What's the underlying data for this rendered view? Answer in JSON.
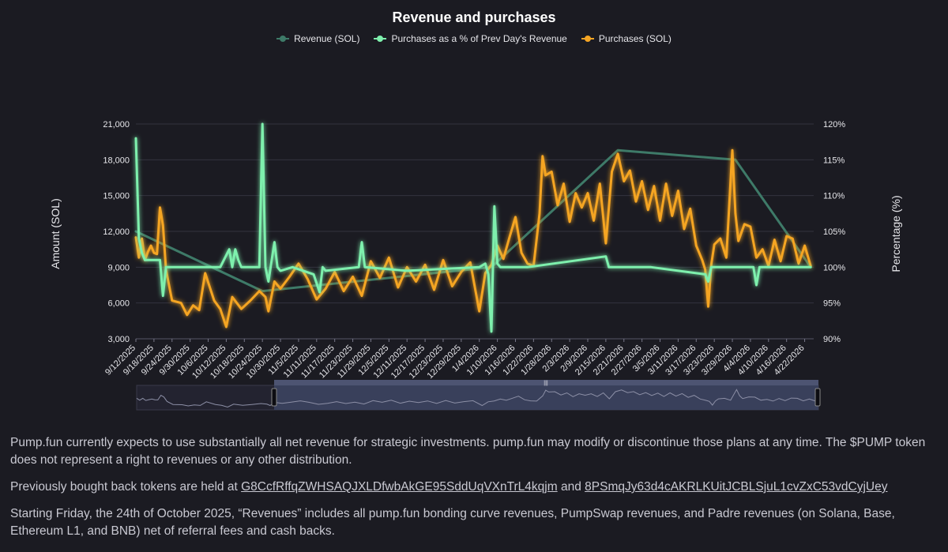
{
  "chart_data": {
    "type": "line",
    "title": "Revenue and purchases",
    "ylabel": "Amount (SOL)",
    "y2label": "Percentage (%)",
    "ylim": [
      3000,
      21000
    ],
    "y2lim": [
      90,
      120
    ],
    "yticks": [
      "21,000",
      "18,000",
      "15,000",
      "12,000",
      "9,000",
      "6,000",
      "3,000"
    ],
    "y2ticks": [
      "120%",
      "115%",
      "110%",
      "105%",
      "100%",
      "95%",
      "90%"
    ],
    "xticks": [
      "9/12/2025",
      "9/18/2025",
      "9/24/2025",
      "9/30/2025",
      "10/6/2025",
      "10/12/2025",
      "10/18/2025",
      "10/24/2025",
      "10/30/2025",
      "11/5/2025",
      "11/11/2025",
      "11/17/2025",
      "11/23/2025",
      "11/29/2025",
      "12/5/2025",
      "12/11/2025",
      "12/17/2025",
      "12/23/2025",
      "12/29/2025",
      "1/4/2026",
      "1/10/2026",
      "1/16/2026",
      "1/22/2026",
      "1/28/2026",
      "2/3/2026",
      "2/9/2026",
      "2/15/2026",
      "2/21/2026",
      "2/27/2026",
      "3/5/2026",
      "3/11/2026",
      "3/17/2026",
      "3/23/2026",
      "3/29/2026",
      "4/4/2026",
      "4/10/2026",
      "4/16/2026",
      "4/22/2026"
    ],
    "grid": true,
    "legend_position": "top-center",
    "series": [
      {
        "name": "Revenue (SOL)",
        "color": "#3e7a68",
        "axis": "left",
        "x": [
          "9/12/2025",
          "10/24/2025",
          "1/8/2026",
          "2/19/2026",
          "3/30/2026",
          "4/24/2026"
        ],
        "y": [
          12000,
          7000,
          9000,
          18800,
          18000,
          9000
        ]
      },
      {
        "name": "Purchases as a % of Prev Day's Revenue",
        "color": "#7ef0ad",
        "axis": "right",
        "x": [
          "9/12/2025",
          "9/13/2025",
          "9/14/2025",
          "9/15/2025",
          "9/20/2025",
          "9/21/2025",
          "9/22/2025",
          "9/30/2025",
          "10/10/2025",
          "10/13/2025",
          "10/14/2025",
          "10/15/2025",
          "10/16/2025",
          "10/17/2025",
          "10/18/2025",
          "10/23/2025",
          "10/24/2025",
          "10/25/2025",
          "10/26/2025",
          "10/28/2025",
          "10/29/2025",
          "10/30/2025",
          "11/3/2025",
          "11/10/2025",
          "11/12/2025",
          "11/13/2025",
          "11/14/2025",
          "11/25/2025",
          "11/26/2025",
          "11/27/2025",
          "12/11/2025",
          "1/4/2026",
          "1/6/2026",
          "1/7/2026",
          "1/8/2026",
          "1/9/2026",
          "1/10/2026",
          "1/11/2026",
          "1/12/2026",
          "1/20/2026",
          "2/15/2026",
          "2/16/2026",
          "2/17/2026",
          "3/2/2026",
          "3/20/2026",
          "3/21/2026",
          "3/22/2026",
          "4/1/2026",
          "4/5/2026",
          "4/6/2026",
          "4/7/2026",
          "4/8/2026",
          "4/24/2026"
        ],
        "y": [
          118,
          104,
          102,
          101,
          101,
          96,
          100,
          100,
          100,
          102.5,
          100,
          102.5,
          101,
          100,
          100,
          100,
          120,
          100,
          98,
          103.5,
          100,
          99.5,
          100,
          99,
          96.5,
          100,
          99.5,
          100,
          103.5,
          100,
          99.5,
          100,
          100.5,
          99,
          91,
          108.5,
          100.5,
          100,
          100,
          100,
          101.5,
          100,
          100,
          100,
          99,
          98,
          100,
          100,
          100,
          97.5,
          100,
          100,
          100
        ]
      },
      {
        "name": "Purchases (SOL)",
        "color": "#f5a524",
        "axis": "left",
        "x": [
          "9/12/2025",
          "9/13/2025",
          "9/14/2025",
          "9/15/2025",
          "9/16/2025",
          "9/17/2025",
          "9/18/2025",
          "9/19/2025",
          "9/20/2025",
          "9/21/2025",
          "9/22/2025",
          "9/24/2025",
          "9/27/2025",
          "9/29/2025",
          "10/1/2025",
          "10/3/2025",
          "10/5/2025",
          "10/8/2025",
          "10/10/2025",
          "10/12/2025",
          "10/14/2025",
          "10/17/2025",
          "10/20/2025",
          "10/23/2025",
          "10/25/2025",
          "10/26/2025",
          "10/28/2025",
          "10/30/2025",
          "11/2/2025",
          "11/5/2025",
          "11/8/2025",
          "11/11/2025",
          "11/14/2025",
          "11/17/2025",
          "11/20/2025",
          "11/23/2025",
          "11/26/2025",
          "11/29/2025",
          "12/2/2025",
          "12/5/2025",
          "12/8/2025",
          "12/11/2025",
          "12/14/2025",
          "12/17/2025",
          "12/20/2025",
          "12/23/2025",
          "12/26/2025",
          "12/29/2025",
          "1/1/2026",
          "1/4/2026",
          "1/6/2026",
          "1/8/2026",
          "1/10/2026",
          "1/12/2026",
          "1/14/2026",
          "1/16/2026",
          "1/18/2026",
          "1/20/2026",
          "1/22/2026",
          "1/24/2026",
          "1/25/2026",
          "1/26/2026",
          "1/28/2026",
          "1/30/2026",
          "2/1/2026",
          "2/3/2026",
          "2/5/2026",
          "2/7/2026",
          "2/9/2026",
          "2/11/2026",
          "2/13/2026",
          "2/15/2026",
          "2/17/2026",
          "2/19/2026",
          "2/21/2026",
          "2/23/2026",
          "2/25/2026",
          "2/27/2026",
          "3/1/2026",
          "3/3/2026",
          "3/5/2026",
          "3/7/2026",
          "3/9/2026",
          "3/11/2026",
          "3/13/2026",
          "3/15/2026",
          "3/17/2026",
          "3/19/2026",
          "3/20/2026",
          "3/21/2026",
          "3/22/2026",
          "3/23/2026",
          "3/25/2026",
          "3/27/2026",
          "3/29/2026",
          "3/30/2026",
          "3/31/2026",
          "4/2/2026",
          "4/4/2026",
          "4/6/2026",
          "4/8/2026",
          "4/10/2026",
          "4/12/2026",
          "4/14/2026",
          "4/16/2026",
          "4/18/2026",
          "4/20/2026",
          "4/22/2026",
          "4/24/2026"
        ],
        "y": [
          11500,
          9800,
          11400,
          9600,
          10300,
          10800,
          10200,
          10100,
          14000,
          12500,
          8800,
          6200,
          6000,
          5000,
          5800,
          5400,
          8500,
          6200,
          5500,
          4000,
          6500,
          5500,
          6200,
          7000,
          6500,
          5300,
          7800,
          7200,
          8200,
          9300,
          8000,
          6300,
          7200,
          8600,
          7000,
          8200,
          6600,
          9500,
          8100,
          9800,
          7300,
          9000,
          7800,
          9200,
          7100,
          9600,
          7400,
          8600,
          9400,
          5300,
          8500,
          9200,
          10800,
          9700,
          11500,
          13200,
          10200,
          9300,
          9100,
          13500,
          18300,
          16700,
          17000,
          14200,
          16000,
          12800,
          15200,
          14000,
          15200,
          12900,
          16000,
          11000,
          17000,
          18500,
          16200,
          17100,
          14500,
          16200,
          13800,
          15800,
          12900,
          16000,
          13300,
          15400,
          12200,
          13900,
          10800,
          9600,
          8800,
          5700,
          9200,
          10900,
          11400,
          9800,
          18800,
          13500,
          11200,
          12600,
          12400,
          9800,
          10500,
          9100,
          11300,
          9500,
          11600,
          11400,
          9300,
          10800,
          9100
        ]
      }
    ]
  },
  "notes": {
    "p1": "Pump.fun currently expects to use substantially all net revenue for strategic investments. pump.fun may modify or discontinue those plans at any time. The $PUMP token does not represent a right to revenues or any other distribution.",
    "p2_prefix": "Previously bought back tokens are held at ",
    "address1": "G8CcfRffqZWHSAQJXLDfwbAkGE95SddUqVXnTrL4kqjm",
    "p2_and": " and ",
    "address2": "8PSmqJy63d4cAKRLKUitJCBLSjuL1cvZxC53vdCyjUey",
    "p3": "Starting Friday, the 24th of October 2025, “Revenues” includes all pump.fun bonding curve revenues, PumpSwap revenues, and Padre revenues (on Solana, Base, Ethereum L1, and BNB) net of referral fees and cash backs."
  }
}
